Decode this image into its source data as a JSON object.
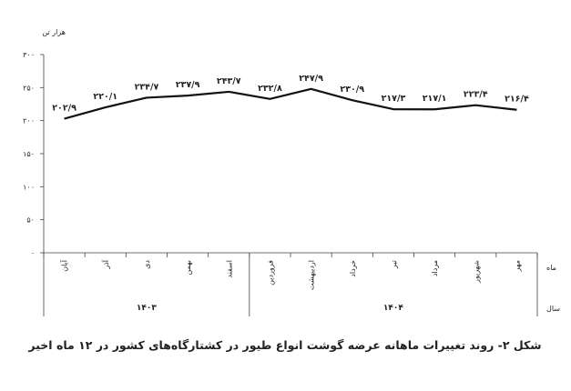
{
  "chart_data": {
    "type": "line",
    "title": "شکل ۲- روند تغییرات ماهانه عرضه گوشت انواع طیور در کشتارگاه‌های کشور در ۱۲ ماه اخیر",
    "ylabel": "هزار تن",
    "xlabel": "ماه",
    "year_row_label": "سال",
    "ylim": [
      0,
      300
    ],
    "yticks": [
      0,
      50,
      100,
      150,
      200,
      250,
      300
    ],
    "ytick_labels": [
      "۰",
      "۵۰",
      "۱۰۰",
      "۱۵۰",
      "۲۰۰",
      "۲۵۰",
      "۳۰۰"
    ],
    "categories": [
      "آبان",
      "آذر",
      "دی",
      "بهمن",
      "اسفند",
      "فروردین",
      "اردیبهشت",
      "خرداد",
      "تیر",
      "مرداد",
      "شهریور",
      "مهر"
    ],
    "values": [
      202.9,
      220.1,
      234.7,
      237.9,
      243.7,
      232.8,
      247.9,
      230.9,
      217.3,
      217.1,
      223.4,
      216.4
    ],
    "value_labels": [
      "۲۰۲/۹",
      "۲۲۰/۱",
      "۲۳۴/۷",
      "۲۳۷/۹",
      "۲۴۳/۷",
      "۲۳۲/۸",
      "۲۴۷/۹",
      "۲۳۰/۹",
      "۲۱۷/۳",
      "۲۱۷/۱",
      "۲۲۳/۴",
      "۲۱۶/۴"
    ],
    "years": [
      {
        "label": "۱۴۰۳",
        "count": 5
      },
      {
        "label": "۱۴۰۴",
        "count": 7
      }
    ],
    "line_color": "#111111",
    "grid": false,
    "legend": "none"
  }
}
